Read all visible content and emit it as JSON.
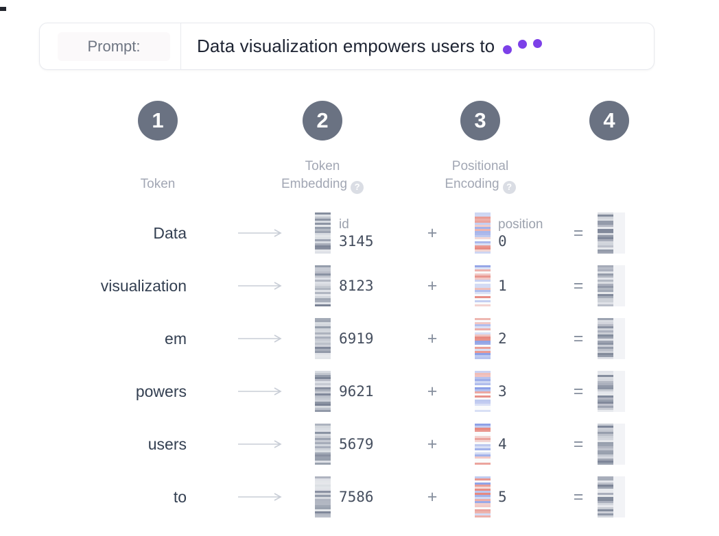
{
  "prompt_bar": {
    "label": "Prompt:",
    "text": "Data visualization empowers users to"
  },
  "steps": [
    "1",
    "2",
    "3",
    "4"
  ],
  "headers": {
    "col1": "Token",
    "col2_line1": "Token",
    "col2_line2": "Embedding",
    "col3_line1": "Positional",
    "col3_line2": "Encoding",
    "help_glyph": "?"
  },
  "row_annotations": {
    "id_label": "id",
    "position_label": "position"
  },
  "operators": {
    "plus": "+",
    "equals": "="
  },
  "rows": [
    {
      "token": "Data",
      "id": "3145",
      "position": "0"
    },
    {
      "token": "visualization",
      "id": "8123",
      "position": "1"
    },
    {
      "token": "em",
      "id": "6919",
      "position": "2"
    },
    {
      "token": "powers",
      "id": "9621",
      "position": "3"
    },
    {
      "token": "users",
      "id": "5679",
      "position": "4"
    },
    {
      "token": "to",
      "id": "7586",
      "position": "5"
    }
  ],
  "colors": {
    "accent_purple": "#7c40e8",
    "step_badge": "#6a7282",
    "embed_gray": "#667085",
    "pos_red": "#e16a5e",
    "pos_blue": "#7088e0"
  }
}
